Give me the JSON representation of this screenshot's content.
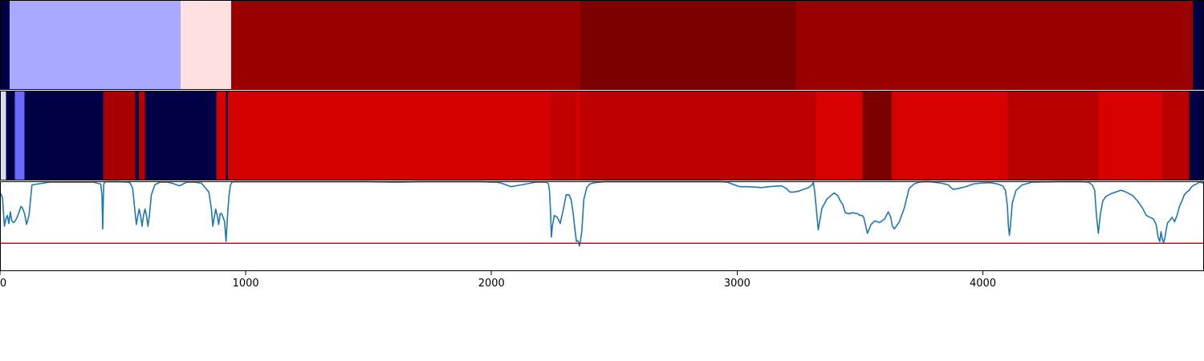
{
  "chart_data": {
    "type": "heatmap",
    "x_range": [
      0,
      4900
    ],
    "xticks": [
      0,
      1000,
      2000,
      3000,
      4000
    ],
    "xtick_labels": [
      "0",
      "1000",
      "2000",
      "3000",
      "4000"
    ],
    "grid": false,
    "legend": "none",
    "panels": [
      {
        "kind": "segments",
        "segments": [
          {
            "start": 0,
            "end": 40,
            "color": "#000045"
          },
          {
            "start": 40,
            "end": 735,
            "color": "#a9a9ff"
          },
          {
            "start": 735,
            "end": 940,
            "color": "#ffe0e0"
          },
          {
            "start": 940,
            "end": 2360,
            "color": "#9a0000"
          },
          {
            "start": 2360,
            "end": 3240,
            "color": "#7c0000"
          },
          {
            "start": 3240,
            "end": 4855,
            "color": "#9a0000"
          },
          {
            "start": 4855,
            "end": 4900,
            "color": "#000045"
          }
        ]
      },
      {
        "kind": "segments",
        "segments": [
          {
            "start": 0,
            "end": 25,
            "color": "#d8dcf5"
          },
          {
            "start": 25,
            "end": 60,
            "color": "#000045"
          },
          {
            "start": 60,
            "end": 100,
            "color": "#6a6aff"
          },
          {
            "start": 100,
            "end": 420,
            "color": "#000045"
          },
          {
            "start": 420,
            "end": 550,
            "color": "#a80000"
          },
          {
            "start": 550,
            "end": 565,
            "color": "#000045"
          },
          {
            "start": 565,
            "end": 590,
            "color": "#b80000"
          },
          {
            "start": 590,
            "end": 880,
            "color": "#000045"
          },
          {
            "start": 880,
            "end": 920,
            "color": "#d50000"
          },
          {
            "start": 920,
            "end": 928,
            "color": "#000045"
          },
          {
            "start": 928,
            "end": 2240,
            "color": "#d50000"
          },
          {
            "start": 2240,
            "end": 2345,
            "color": "#c30000"
          },
          {
            "start": 2345,
            "end": 2360,
            "color": "#d50000"
          },
          {
            "start": 2360,
            "end": 3320,
            "color": "#bd0000"
          },
          {
            "start": 3320,
            "end": 3510,
            "color": "#d80000"
          },
          {
            "start": 3510,
            "end": 3630,
            "color": "#7c0000"
          },
          {
            "start": 3630,
            "end": 4100,
            "color": "#d80000"
          },
          {
            "start": 4100,
            "end": 4470,
            "color": "#b80000"
          },
          {
            "start": 4470,
            "end": 4730,
            "color": "#d80000"
          },
          {
            "start": 4730,
            "end": 4840,
            "color": "#b80000"
          },
          {
            "start": 4840,
            "end": 4900,
            "color": "#000045"
          }
        ]
      },
      {
        "kind": "line",
        "ylim": [
          0,
          1
        ],
        "line_color": "#1f77b4",
        "threshold": 0.31,
        "threshold_color": "#e8000b",
        "x": [
          0,
          10,
          18,
          24,
          30,
          36,
          42,
          48,
          55,
          62,
          70,
          78,
          85,
          92,
          100,
          108,
          118,
          130,
          200,
          300,
          380,
          410,
          415,
          418,
          422,
          425,
          430,
          440,
          455,
          480,
          520,
          530,
          540,
          548,
          555,
          560,
          566,
          572,
          578,
          584,
          590,
          596,
          602,
          608,
          616,
          630,
          650,
          680,
          700,
          730,
          760,
          790,
          820,
          850,
          860,
          866,
          872,
          878,
          884,
          890,
          896,
          902,
          908,
          914,
          920,
          926,
          932,
          938,
          944,
          952,
          965,
          1000,
          1200,
          1500,
          1600,
          1630,
          1700,
          1900,
          1960,
          2000,
          2020,
          2040,
          2080,
          2100,
          2140,
          2180,
          2200,
          2215,
          2225,
          2232,
          2236,
          2240,
          2244,
          2248,
          2256,
          2268,
          2280,
          2292,
          2304,
          2316,
          2324,
          2332,
          2340,
          2346,
          2350,
          2354,
          2358,
          2362,
          2368,
          2376,
          2388,
          2400,
          2420,
          2460,
          2600,
          2900,
          2930,
          2960,
          2990,
          3010,
          3040,
          3080,
          3100,
          3130,
          3180,
          3200,
          3215,
          3230,
          3250,
          3270,
          3290,
          3305,
          3310,
          3315,
          3322,
          3330,
          3345,
          3365,
          3385,
          3395,
          3410,
          3420,
          3430,
          3440,
          3455,
          3470,
          3490,
          3500,
          3508,
          3515,
          3522,
          3530,
          3545,
          3560,
          3580,
          3600,
          3615,
          3625,
          3632,
          3640,
          3660,
          3680,
          3700,
          3720,
          3740,
          3760,
          3780,
          3800,
          3830,
          3860,
          3870,
          3880,
          3900,
          3930,
          3960,
          3990,
          4030,
          4060,
          4080,
          4092,
          4100,
          4104,
          4108,
          4112,
          4120,
          4135,
          4160,
          4200,
          4300,
          4400,
          4430,
          4445,
          4455,
          4463,
          4470,
          4478,
          4488,
          4500,
          4520,
          4540,
          4560,
          4575,
          4590,
          4610,
          4630,
          4650,
          4665,
          4680,
          4695,
          4705,
          4713,
          4720,
          4725,
          4730,
          4735,
          4740,
          4746,
          4752,
          4760,
          4770,
          4780,
          4790,
          4800,
          4810,
          4820,
          4830,
          4840,
          4850,
          4860,
          4870,
          4880,
          4900
        ],
        "y": [
          0.88,
          0.82,
          0.5,
          0.58,
          0.62,
          0.53,
          0.66,
          0.56,
          0.54,
          0.56,
          0.6,
          0.66,
          0.72,
          0.7,
          0.64,
          0.52,
          0.62,
          0.96,
          0.99,
          0.99,
          0.99,
          0.97,
          0.84,
          0.47,
          0.96,
          0.99,
          0.995,
          0.995,
          0.995,
          0.995,
          0.99,
          0.98,
          0.92,
          0.7,
          0.52,
          0.6,
          0.69,
          0.62,
          0.5,
          0.62,
          0.69,
          0.62,
          0.5,
          0.62,
          0.85,
          0.96,
          0.99,
          0.99,
          0.98,
          0.95,
          0.99,
          0.99,
          0.98,
          0.88,
          0.7,
          0.5,
          0.6,
          0.69,
          0.62,
          0.52,
          0.64,
          0.64,
          0.6,
          0.55,
          0.33,
          0.62,
          0.84,
          0.96,
          0.99,
          0.995,
          0.995,
          0.995,
          0.995,
          0.995,
          0.99,
          0.99,
          0.995,
          0.995,
          0.995,
          0.99,
          0.99,
          0.98,
          0.94,
          0.95,
          0.97,
          0.99,
          0.99,
          0.99,
          0.99,
          0.97,
          0.9,
          0.7,
          0.38,
          0.5,
          0.62,
          0.6,
          0.53,
          0.68,
          0.85,
          0.85,
          0.8,
          0.66,
          0.46,
          0.33,
          0.34,
          0.33,
          0.28,
          0.33,
          0.45,
          0.8,
          0.93,
          0.97,
          0.985,
          0.995,
          0.995,
          0.995,
          0.995,
          0.99,
          0.96,
          0.94,
          0.94,
          0.935,
          0.93,
          0.94,
          0.95,
          0.92,
          0.88,
          0.88,
          0.89,
          0.91,
          0.93,
          0.96,
          0.99,
          0.9,
          0.7,
          0.46,
          0.7,
          0.8,
          0.85,
          0.87,
          0.84,
          0.78,
          0.74,
          0.65,
          0.64,
          0.65,
          0.64,
          0.62,
          0.62,
          0.6,
          0.52,
          0.42,
          0.52,
          0.56,
          0.54,
          0.58,
          0.66,
          0.6,
          0.5,
          0.47,
          0.55,
          0.7,
          0.92,
          0.97,
          0.99,
          0.995,
          0.995,
          0.99,
          0.98,
          0.96,
          0.93,
          0.91,
          0.92,
          0.94,
          0.97,
          0.98,
          0.985,
          0.97,
          0.95,
          0.9,
          0.72,
          0.5,
          0.4,
          0.5,
          0.76,
          0.9,
          0.96,
          0.99,
          0.995,
          0.995,
          0.99,
          0.96,
          0.9,
          0.6,
          0.42,
          0.63,
          0.78,
          0.83,
          0.86,
          0.88,
          0.9,
          0.89,
          0.87,
          0.84,
          0.78,
          0.7,
          0.62,
          0.6,
          0.58,
          0.52,
          0.38,
          0.33,
          0.44,
          0.36,
          0.32,
          0.36,
          0.46,
          0.54,
          0.56,
          0.6,
          0.55,
          0.62,
          0.72,
          0.78,
          0.85,
          0.88,
          0.9,
          0.94,
          0.96,
          0.97,
          0.99,
          0.98
        ]
      }
    ]
  }
}
